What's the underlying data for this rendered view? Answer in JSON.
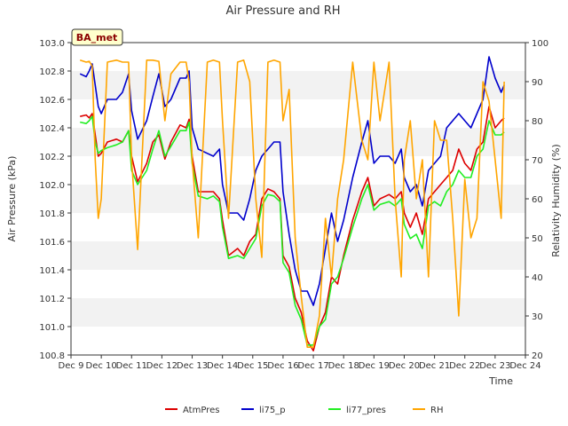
{
  "chart_data": {
    "type": "line",
    "title": "Air Pressure and RH",
    "station_label": "BA_met",
    "xlabel": "Time",
    "ylabel": "Air Pressure (kPa)",
    "ylabel_right": "Relativity Humidity (%)",
    "xlim": [
      9,
      24
    ],
    "ylim": [
      100.8,
      103.0
    ],
    "ylim_right": [
      20,
      100
    ],
    "x_ticks": [
      "Dec 9",
      "Dec 10",
      "Dec 11",
      "Dec 12",
      "Dec 13",
      "Dec 14",
      "Dec 15",
      "Dec 16",
      "Dec 17",
      "Dec 18",
      "Dec 19",
      "Dec 20",
      "Dec 21",
      "Dec 22",
      "Dec 23",
      "Dec 24"
    ],
    "y_ticks": [
      "100.8",
      "101.0",
      "101.2",
      "101.4",
      "101.6",
      "101.8",
      "102.0",
      "102.2",
      "102.4",
      "102.6",
      "102.8",
      "103.0"
    ],
    "y_ticks_right": [
      "20",
      "30",
      "40",
      "50",
      "60",
      "70",
      "80",
      "90",
      "100"
    ],
    "grid": "horizontal bands",
    "legend_position": "bottom",
    "colors": {
      "band": "#f2f2f2",
      "axis": "#333333"
    },
    "series": [
      {
        "name": "AtmPres",
        "axis": "left",
        "color": "#dd0000",
        "x": [
          9.3,
          9.5,
          9.6,
          9.7,
          9.8,
          9.9,
          10.0,
          10.2,
          10.5,
          10.7,
          10.9,
          11.0,
          11.2,
          11.5,
          11.7,
          11.9,
          12.1,
          12.3,
          12.6,
          12.8,
          12.9,
          13.0,
          13.2,
          13.5,
          13.7,
          13.9,
          14.0,
          14.2,
          14.5,
          14.7,
          14.9,
          15.1,
          15.3,
          15.5,
          15.7,
          15.9,
          16.0,
          16.2,
          16.4,
          16.6,
          16.8,
          17.0,
          17.2,
          17.4,
          17.6,
          17.8,
          18.0,
          18.3,
          18.6,
          18.8,
          19.0,
          19.2,
          19.5,
          19.7,
          19.9,
          20.0,
          20.2,
          20.4,
          20.6,
          20.8,
          21.0,
          21.2,
          21.4,
          21.6,
          21.8,
          22.0,
          22.2,
          22.4,
          22.6,
          22.8,
          23.0,
          23.2,
          23.3
        ],
        "values": [
          102.48,
          102.49,
          102.47,
          102.5,
          102.35,
          102.2,
          102.22,
          102.3,
          102.32,
          102.3,
          102.38,
          102.2,
          102.02,
          102.15,
          102.3,
          102.35,
          102.18,
          102.3,
          102.42,
          102.4,
          102.46,
          102.2,
          101.95,
          101.95,
          101.95,
          101.9,
          101.75,
          101.5,
          101.55,
          101.5,
          101.6,
          101.65,
          101.9,
          101.97,
          101.95,
          101.9,
          101.5,
          101.42,
          101.2,
          101.1,
          100.9,
          100.83,
          101.0,
          101.1,
          101.35,
          101.3,
          101.5,
          101.75,
          101.95,
          102.05,
          101.85,
          101.9,
          101.93,
          101.9,
          101.95,
          101.8,
          101.7,
          101.8,
          101.65,
          101.9,
          101.95,
          102.0,
          102.05,
          102.1,
          102.25,
          102.15,
          102.1,
          102.25,
          102.3,
          102.55,
          102.4,
          102.45,
          102.47
        ]
      },
      {
        "name": "li75_p",
        "axis": "left",
        "color": "#0000cc",
        "x": [
          9.3,
          9.5,
          9.6,
          9.7,
          9.8,
          9.9,
          10.0,
          10.2,
          10.5,
          10.7,
          10.9,
          11.0,
          11.2,
          11.5,
          11.7,
          11.9,
          12.1,
          12.3,
          12.6,
          12.8,
          12.9,
          13.0,
          13.2,
          13.5,
          13.7,
          13.9,
          14.0,
          14.2,
          14.5,
          14.7,
          14.9,
          15.1,
          15.3,
          15.5,
          15.7,
          15.9,
          16.0,
          16.2,
          16.4,
          16.6,
          16.8,
          17.0,
          17.2,
          17.4,
          17.6,
          17.8,
          18.0,
          18.3,
          18.6,
          18.8,
          19.0,
          19.2,
          19.5,
          19.7,
          19.9,
          20.0,
          20.2,
          20.4,
          20.6,
          20.8,
          21.0,
          21.2,
          21.4,
          21.6,
          21.8,
          22.0,
          22.2,
          22.4,
          22.6,
          22.8,
          23.0,
          23.2,
          23.3
        ],
        "values": [
          102.78,
          102.76,
          102.8,
          102.85,
          102.7,
          102.55,
          102.5,
          102.6,
          102.6,
          102.65,
          102.78,
          102.52,
          102.32,
          102.45,
          102.62,
          102.78,
          102.55,
          102.6,
          102.75,
          102.75,
          102.8,
          102.4,
          102.25,
          102.22,
          102.2,
          102.25,
          102.0,
          101.8,
          101.8,
          101.75,
          101.9,
          102.1,
          102.2,
          102.25,
          102.3,
          102.3,
          101.95,
          101.65,
          101.4,
          101.25,
          101.25,
          101.15,
          101.3,
          101.55,
          101.8,
          101.6,
          101.75,
          102.05,
          102.3,
          102.45,
          102.15,
          102.2,
          102.2,
          102.15,
          102.25,
          102.05,
          101.95,
          102.0,
          101.85,
          102.1,
          102.15,
          102.2,
          102.4,
          102.45,
          102.5,
          102.45,
          102.4,
          102.5,
          102.6,
          102.9,
          102.75,
          102.65,
          102.7
        ]
      },
      {
        "name": "li77_pres",
        "axis": "left",
        "color": "#22ee22",
        "x": [
          9.3,
          9.5,
          9.6,
          9.7,
          9.8,
          9.9,
          10.0,
          10.2,
          10.5,
          10.7,
          10.9,
          11.0,
          11.2,
          11.5,
          11.7,
          11.9,
          12.1,
          12.3,
          12.6,
          12.8,
          12.9,
          13.0,
          13.2,
          13.5,
          13.7,
          13.9,
          14.0,
          14.2,
          14.5,
          14.7,
          14.9,
          15.1,
          15.3,
          15.5,
          15.7,
          15.9,
          16.0,
          16.2,
          16.4,
          16.6,
          16.8,
          17.0,
          17.2,
          17.4,
          17.6,
          17.8,
          18.0,
          18.3,
          18.6,
          18.8,
          19.0,
          19.2,
          19.5,
          19.7,
          19.9,
          20.0,
          20.2,
          20.4,
          20.6,
          20.8,
          21.0,
          21.2,
          21.4,
          21.6,
          21.8,
          22.0,
          22.2,
          22.4,
          22.6,
          22.8,
          23.0,
          23.2,
          23.3
        ],
        "values": [
          102.44,
          102.43,
          102.45,
          102.48,
          102.3,
          102.22,
          102.24,
          102.26,
          102.28,
          102.3,
          102.38,
          102.1,
          102.0,
          102.1,
          102.25,
          102.38,
          102.2,
          102.27,
          102.38,
          102.38,
          102.44,
          102.15,
          101.92,
          101.9,
          101.92,
          101.88,
          101.7,
          101.48,
          101.5,
          101.48,
          101.55,
          101.62,
          101.85,
          101.93,
          101.92,
          101.88,
          101.45,
          101.38,
          101.15,
          101.05,
          100.87,
          100.87,
          101.0,
          101.05,
          101.3,
          101.35,
          101.48,
          101.7,
          101.9,
          102.0,
          101.82,
          101.86,
          101.88,
          101.85,
          101.9,
          101.72,
          101.62,
          101.65,
          101.55,
          101.85,
          101.88,
          101.85,
          101.95,
          102.0,
          102.1,
          102.05,
          102.05,
          102.2,
          102.25,
          102.45,
          102.35,
          102.35,
          102.37
        ]
      },
      {
        "name": "RH",
        "axis": "right",
        "color": "#ffa500",
        "x": [
          9.3,
          9.5,
          9.6,
          9.7,
          9.8,
          9.9,
          10.0,
          10.2,
          10.5,
          10.7,
          10.9,
          11.0,
          11.2,
          11.5,
          11.7,
          11.9,
          12.1,
          12.3,
          12.6,
          12.8,
          12.9,
          13.0,
          13.2,
          13.5,
          13.7,
          13.9,
          14.0,
          14.2,
          14.5,
          14.7,
          14.9,
          15.1,
          15.3,
          15.5,
          15.7,
          15.9,
          16.0,
          16.2,
          16.4,
          16.6,
          16.8,
          17.0,
          17.2,
          17.4,
          17.6,
          17.8,
          18.0,
          18.3,
          18.6,
          18.8,
          19.0,
          19.2,
          19.5,
          19.7,
          19.9,
          20.0,
          20.2,
          20.4,
          20.6,
          20.8,
          21.0,
          21.2,
          21.4,
          21.6,
          21.8,
          22.0,
          22.2,
          22.4,
          22.6,
          22.8,
          23.0,
          23.2,
          23.3
        ],
        "values": [
          95.5,
          95.0,
          95.2,
          94.0,
          70.0,
          55.0,
          60.0,
          95.0,
          95.5,
          95.0,
          95.0,
          70.0,
          47.0,
          95.5,
          95.5,
          95.2,
          80.0,
          92.0,
          95.0,
          95.0,
          90.0,
          70.0,
          50.0,
          95.0,
          95.5,
          95.0,
          80.0,
          55.0,
          95.0,
          95.5,
          90.0,
          60.0,
          45.0,
          95.0,
          95.5,
          95.0,
          80.0,
          88.0,
          50.0,
          35.0,
          22.0,
          22.0,
          30.0,
          55.0,
          40.0,
          60.0,
          70.0,
          95.0,
          75.0,
          70.0,
          95.0,
          80.0,
          95.0,
          60.0,
          40.0,
          70.0,
          80.0,
          60.0,
          70.0,
          40.0,
          80.0,
          75.0,
          75.0,
          55.0,
          30.0,
          65.0,
          50.0,
          55.0,
          90.0,
          85.0,
          70.0,
          55.0,
          90.0
        ]
      }
    ]
  }
}
